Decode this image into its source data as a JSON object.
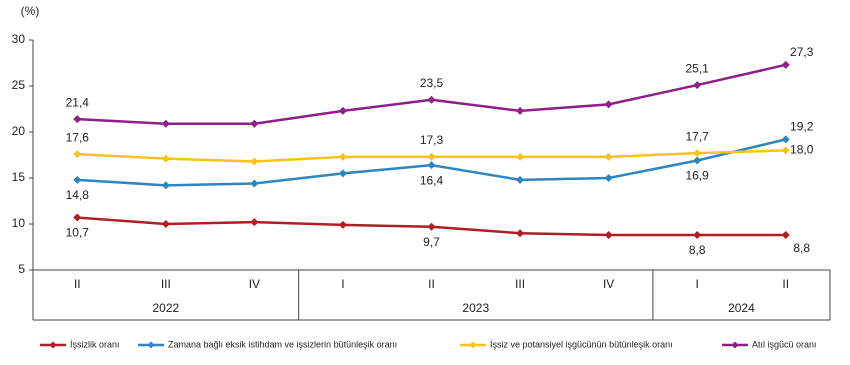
{
  "chart_data": {
    "type": "line",
    "y_label": "(%)",
    "categories": [
      "II",
      "III",
      "IV",
      "I",
      "II",
      "III",
      "IV",
      "I",
      "II"
    ],
    "groups": [
      {
        "label": "2022",
        "count": 3
      },
      {
        "label": "2023",
        "count": 4
      },
      {
        "label": "2024",
        "count": 2
      }
    ],
    "ylim": [
      5,
      30
    ],
    "yticks": [
      5,
      10,
      15,
      20,
      25,
      30
    ],
    "series": [
      {
        "name": "İşsizlik oranı",
        "color": "#b01e23",
        "values": [
          10.7,
          10.0,
          10.2,
          9.9,
          9.7,
          9.0,
          8.8,
          8.8,
          8.8
        ],
        "value_labels": [
          "10,7",
          null,
          null,
          null,
          "9,7",
          null,
          null,
          "8,8",
          "8,8"
        ]
      },
      {
        "name": "Zamana bağlı eksik istihdam ve işsizlerin bütünleşik oranı",
        "color": "#2e86c1",
        "values": [
          14.8,
          14.2,
          14.4,
          15.5,
          16.4,
          14.8,
          15.0,
          16.9,
          19.2
        ],
        "value_labels": [
          "14,8",
          null,
          null,
          null,
          "16,4",
          null,
          null,
          "16,9",
          "19,2"
        ]
      },
      {
        "name": "İşsiz ve potansiyel işgücünün bütünleşik oranı",
        "color": "#f7c31a",
        "values": [
          17.6,
          17.1,
          16.8,
          17.3,
          17.3,
          17.3,
          17.3,
          17.7,
          18.0
        ],
        "value_labels": [
          "17,6",
          null,
          null,
          null,
          "17,3",
          null,
          null,
          "17,7",
          "18,0"
        ]
      },
      {
        "name": "Atıl işgücü oranı",
        "color": "#8e1f88",
        "values": [
          21.4,
          20.9,
          20.9,
          22.3,
          23.5,
          22.3,
          23.0,
          25.1,
          27.3
        ],
        "value_labels": [
          "21,4",
          null,
          null,
          null,
          "23,5",
          null,
          null,
          "25,1",
          "27,3"
        ]
      }
    ]
  }
}
